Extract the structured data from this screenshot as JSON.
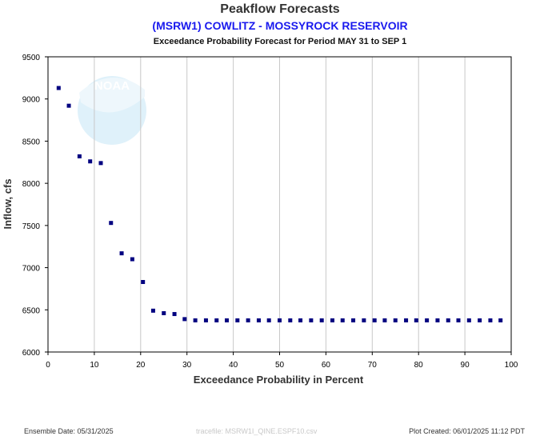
{
  "header": {
    "title": "Peakflow Forecasts",
    "subtitle": "(MSRW1) COWLITZ - MOSSYROCK RESERVOIR",
    "subtitle2": "Exceedance Probability Forecast for Period MAY 31 to SEP 1"
  },
  "footer": {
    "ensemble_date": "Ensemble Date: 05/31/2025",
    "tracefile": "tracefile: MSRW1I_QINE.ESPF10.csv",
    "plot_created": "Plot Created: 06/01/2025 11:12 PDT"
  },
  "logo": {
    "text": "NOAA"
  },
  "colors": {
    "marker": "#000080",
    "grid": "#c8c8c8",
    "subtitle": "#1a1aee",
    "logo": "#dff1fa"
  },
  "chart_data": {
    "type": "scatter",
    "xlabel": "Exceedance Probability in Percent",
    "ylabel": "Inflow, cfs",
    "xlim": [
      0,
      100
    ],
    "ylim": [
      6000,
      9500
    ],
    "xticks": [
      0,
      10,
      20,
      30,
      40,
      50,
      60,
      70,
      80,
      90,
      100
    ],
    "yticks": [
      6000,
      6500,
      7000,
      7500,
      8000,
      8500,
      9000,
      9500
    ],
    "grid": "vertical",
    "series": [
      {
        "x": [
          2.3,
          4.5,
          6.8,
          9.1,
          11.4,
          13.6,
          15.9,
          18.2,
          20.5,
          22.7,
          25.0,
          27.3,
          29.5,
          31.8,
          34.1,
          36.4,
          38.6,
          40.9,
          43.2,
          45.5,
          47.7,
          50.0,
          52.3,
          54.5,
          56.8,
          59.1,
          61.4,
          63.6,
          65.9,
          68.2,
          70.5,
          72.7,
          75.0,
          77.3,
          79.5,
          81.8,
          84.1,
          86.4,
          88.6,
          90.9,
          93.2,
          95.5,
          97.7
        ],
        "y": [
          9130,
          8920,
          8320,
          8260,
          8240,
          7530,
          7170,
          7100,
          6830,
          6490,
          6460,
          6450,
          6390,
          6375,
          6375,
          6375,
          6375,
          6375,
          6375,
          6375,
          6375,
          6375,
          6375,
          6375,
          6375,
          6375,
          6375,
          6375,
          6375,
          6375,
          6375,
          6375,
          6375,
          6375,
          6375,
          6375,
          6375,
          6375,
          6375,
          6375,
          6375,
          6375,
          6375
        ]
      }
    ]
  }
}
